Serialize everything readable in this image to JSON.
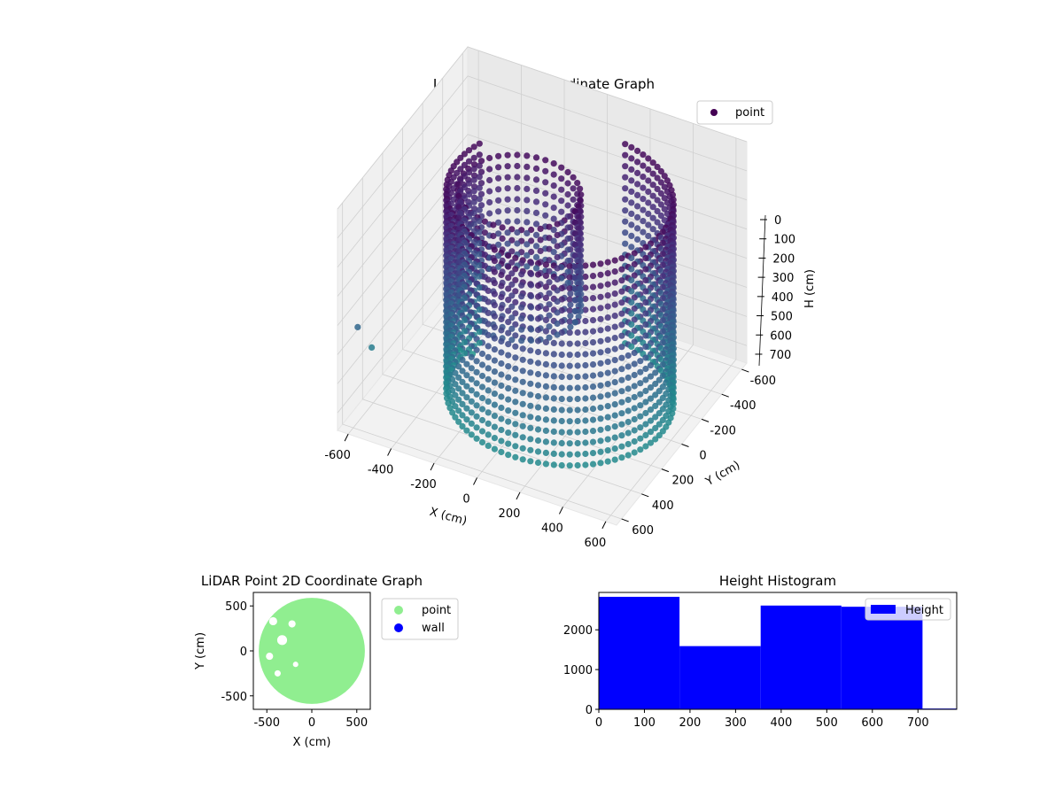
{
  "chart_data": [
    {
      "type": "scatter3d",
      "title": "LiDAR Point 3D Coordinate Graph",
      "xlabel": "X (cm)",
      "ylabel": "Y (cm)",
      "zlabel": "H (cm)",
      "xticks": [
        -600,
        -400,
        -200,
        0,
        200,
        400,
        600
      ],
      "yticks": [
        -600,
        -400,
        -200,
        0,
        200,
        400,
        600
      ],
      "zticks": [
        0,
        100,
        200,
        300,
        400,
        500,
        600,
        700
      ],
      "xlim": [
        -650,
        650
      ],
      "ylim": [
        -650,
        650
      ],
      "zlim": [
        0,
        760
      ],
      "z_inverted": true,
      "colormap": "viridis",
      "legend": [
        {
          "label": "point",
          "color": "#440154"
        }
      ],
      "legend_position": "top-right",
      "grid": true,
      "series": [
        {
          "name": "point",
          "shape": "ring-wall",
          "center": [
            120,
            80
          ],
          "radius": 480,
          "angle_range_deg": [
            -80,
            200
          ],
          "h_range": [
            10,
            700
          ]
        },
        {
          "name": "point",
          "shape": "inner-wall",
          "center": [
            -50,
            120
          ],
          "radius": 260,
          "h_range": [
            20,
            420
          ]
        }
      ],
      "outliers": [
        {
          "x": -640,
          "y": 470,
          "h": 480
        },
        {
          "x": -640,
          "y": 330,
          "h": 610
        },
        {
          "x": -420,
          "y": -80,
          "h": 740
        },
        {
          "x": -380,
          "y": -120,
          "h": 760
        }
      ]
    },
    {
      "type": "scatter",
      "title": "LiDAR Point 2D Coordinate Graph",
      "xlabel": "X (cm)",
      "ylabel": "Y (cm)",
      "xticks": [
        -500,
        0,
        500
      ],
      "yticks": [
        -500,
        0,
        500
      ],
      "xlim": [
        -650,
        650
      ],
      "ylim": [
        -650,
        650
      ],
      "legend": [
        {
          "label": "point",
          "color": "#90ee90"
        },
        {
          "label": "wall",
          "color": "#0000ff"
        }
      ],
      "legend_position": "outside-right",
      "disc": {
        "center": [
          0,
          0
        ],
        "radius": 590,
        "color": "#90ee90"
      }
    },
    {
      "type": "bar",
      "title": "Height Histogram",
      "xticks": [
        0,
        100,
        200,
        300,
        400,
        500,
        600,
        700
      ],
      "yticks": [
        0,
        1000,
        2000
      ],
      "xlim": [
        0,
        785
      ],
      "ylim": [
        0,
        2940
      ],
      "legend": [
        {
          "label": "Height",
          "color": "#0000ff"
        }
      ],
      "legend_position": "top-right",
      "bins": [
        {
          "x0": 0,
          "x1": 177,
          "count": 2830
        },
        {
          "x0": 177,
          "x1": 355,
          "count": 1590
        },
        {
          "x0": 355,
          "x1": 532,
          "count": 2610
        },
        {
          "x0": 532,
          "x1": 710,
          "count": 2580
        },
        {
          "x0": 710,
          "x1": 785,
          "count": 20
        }
      ]
    }
  ]
}
